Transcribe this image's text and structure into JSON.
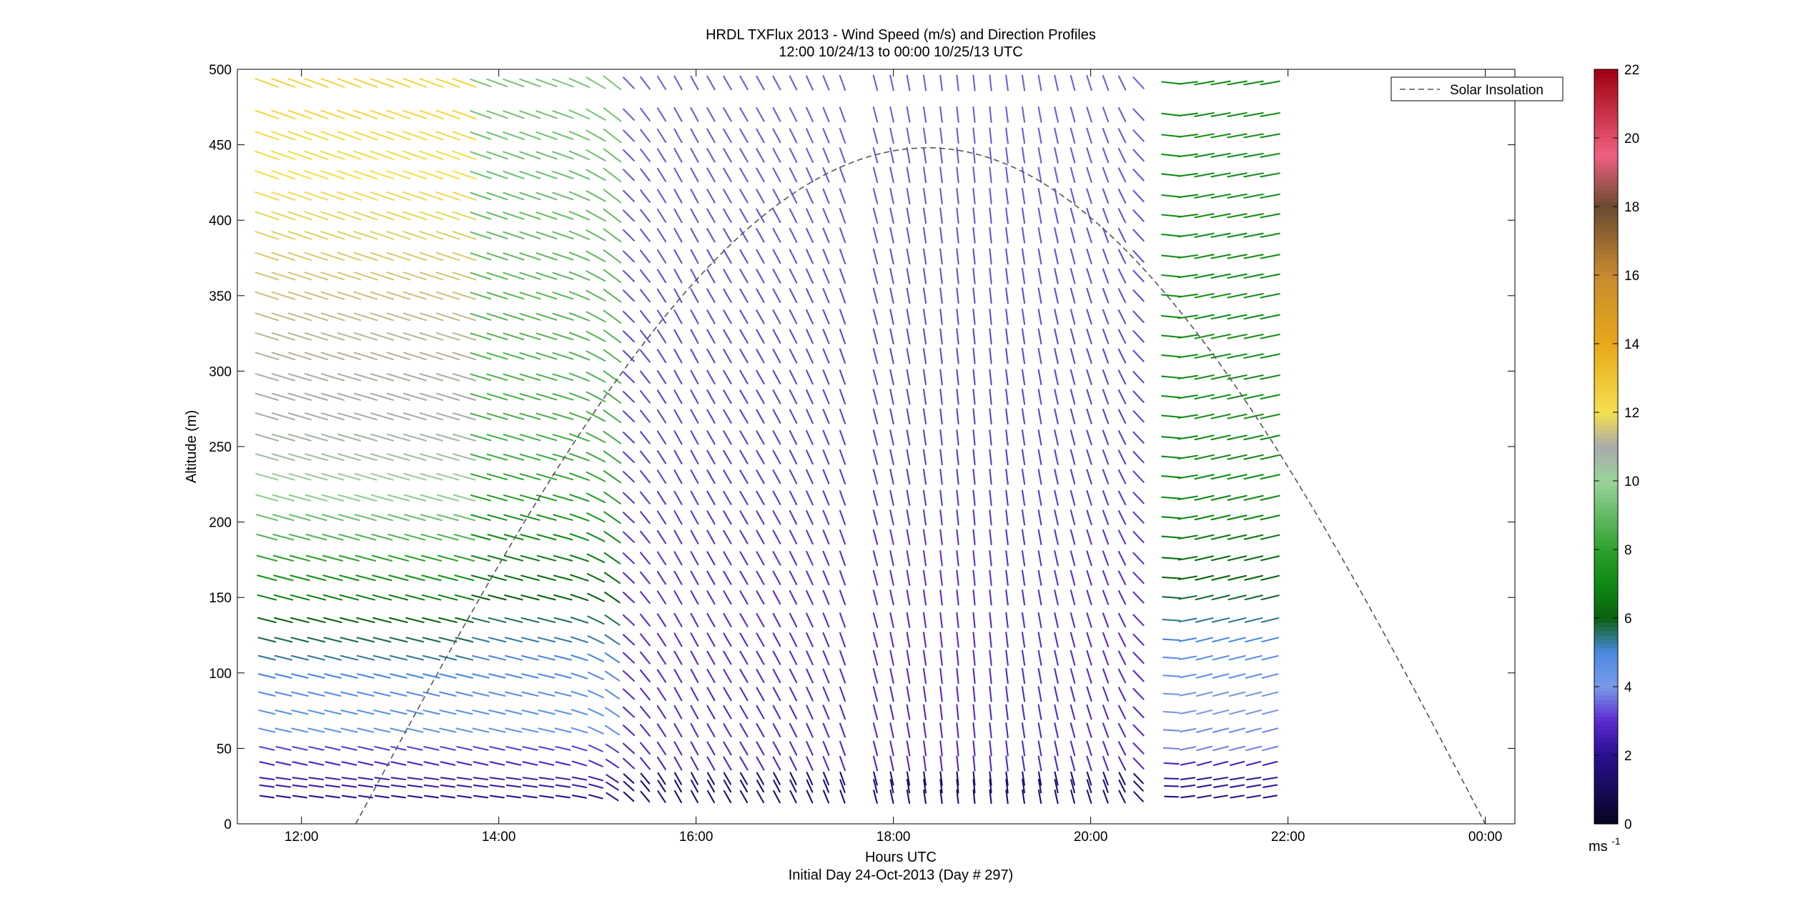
{
  "chart_data": {
    "type": "vector-field",
    "title": "HRDL TXFlux 2013 - Wind Speed (m/s) and Direction Profiles",
    "subtitle": "12:00 10/24/13 to 00:00 10/25/13  UTC",
    "xlabel": "Hours UTC",
    "xlabel_note": "Initial Day 24-Oct-2013 (Day # 297)",
    "ylabel": "Altitude (m)",
    "x_ticks": [
      "12:00",
      "14:00",
      "16:00",
      "18:00",
      "20:00",
      "22:00",
      "00:00"
    ],
    "x_tick_hours": [
      12,
      14,
      16,
      18,
      20,
      22,
      24
    ],
    "xlim_hours": [
      11.35,
      24.3
    ],
    "y_ticks": [
      "0",
      "50",
      "100",
      "150",
      "200",
      "250",
      "300",
      "350",
      "400",
      "450",
      "500"
    ],
    "ylim": [
      0,
      500
    ],
    "grid": false,
    "legend": {
      "entries": [
        "Solar Insolation"
      ],
      "placement": "top-right",
      "line_style": "dashed",
      "color": "#555555"
    },
    "colorbar": {
      "ticks": [
        "0",
        "2",
        "4",
        "6",
        "8",
        "10",
        "12",
        "14",
        "16",
        "18",
        "20",
        "22"
      ],
      "range": [
        0,
        22
      ],
      "unit_label": "ms",
      "unit_exponent": "-1",
      "color_stops": [
        {
          "v": 0,
          "c": "#050520"
        },
        {
          "v": 2,
          "c": "#2a0f8f"
        },
        {
          "v": 3,
          "c": "#5a2ad0"
        },
        {
          "v": 4,
          "c": "#7a9be8"
        },
        {
          "v": 5,
          "c": "#4a88e0"
        },
        {
          "v": 6,
          "c": "#0a6010"
        },
        {
          "v": 7,
          "c": "#0f8a14"
        },
        {
          "v": 8,
          "c": "#2ea02e"
        },
        {
          "v": 10,
          "c": "#9ad49a"
        },
        {
          "v": 11,
          "c": "#aaaaaa"
        },
        {
          "v": 12,
          "c": "#f5e050"
        },
        {
          "v": 14,
          "c": "#e8a818"
        },
        {
          "v": 16,
          "c": "#c88a30"
        },
        {
          "v": 18,
          "c": "#6a4a30"
        },
        {
          "v": 19.5,
          "c": "#f06080"
        },
        {
          "v": 22,
          "c": "#a00010"
        }
      ]
    },
    "solar_insolation": {
      "peak_hour": 18.35,
      "peak_altitude_m": 448,
      "start_hour": 12.55,
      "end_hour": 24.0
    },
    "wind_field": {
      "time_start_hour": 11.65,
      "time_step_hour": 0.1667,
      "time_count": 62,
      "altitudes_m": [
        18,
        25,
        30,
        40,
        50,
        62,
        74,
        86,
        98,
        110,
        122,
        135,
        150,
        163,
        176,
        190,
        203,
        216,
        230,
        243,
        256,
        270,
        283,
        296,
        310,
        323,
        336,
        350,
        363,
        376,
        390,
        403,
        416,
        430,
        443,
        456,
        470,
        491
      ],
      "data_gaps_hour": [
        [
          16.55,
          16.65
        ],
        [
          17.55,
          17.75
        ],
        [
          20.6,
          20.75
        ]
      ],
      "regimes": [
        {
          "name": "morning-west",
          "hours": [
            11.65,
            15.0
          ],
          "direction": "from-west-northwest",
          "speed_ms": [
            1.5,
            12
          ]
        },
        {
          "name": "midday-north",
          "hours": [
            15.0,
            20.5
          ],
          "direction": "from-north",
          "speed_ms": [
            2,
            4
          ]
        },
        {
          "name": "evening-east",
          "hours": [
            20.5,
            24.1
          ],
          "direction": "from-east-southeast",
          "speed_ms": [
            1,
            8
          ]
        }
      ]
    }
  }
}
